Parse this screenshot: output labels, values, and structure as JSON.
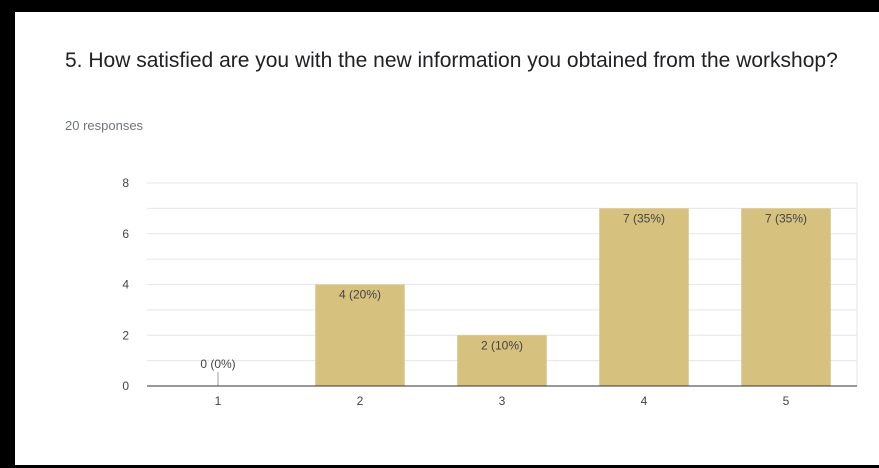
{
  "question": {
    "title": "5. How satisfied are you with the new information you obtained from the workshop?",
    "responses": "20 responses"
  },
  "colors": {
    "bar": "#d6c17f",
    "gridline": "#e6e6e6",
    "baseline": "#333333"
  },
  "chart_data": {
    "type": "bar",
    "categories": [
      "1",
      "2",
      "3",
      "4",
      "5"
    ],
    "values": [
      0,
      4,
      2,
      7,
      7
    ],
    "data_labels": [
      "0 (0%)",
      "4 (20%)",
      "2 (10%)",
      "7 (35%)",
      "7 (35%)"
    ],
    "yticks": [
      0,
      2,
      4,
      6,
      8
    ],
    "ylim": [
      0,
      8
    ],
    "grid": true,
    "legend": "none"
  }
}
